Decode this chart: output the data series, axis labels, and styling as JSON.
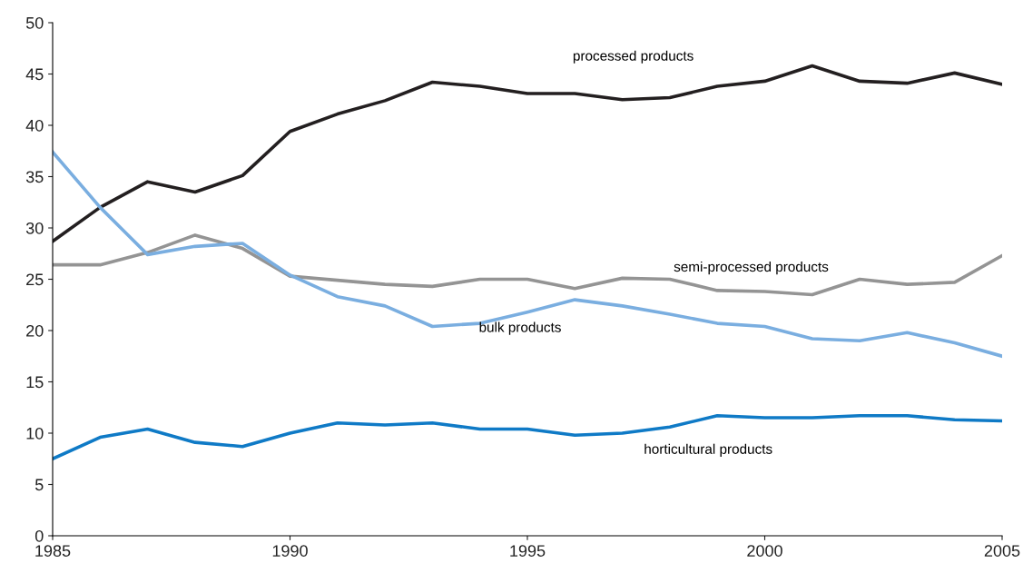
{
  "chart_data": {
    "type": "line",
    "x": [
      1985,
      1986,
      1987,
      1988,
      1989,
      1990,
      1991,
      1992,
      1993,
      1994,
      1995,
      1996,
      1997,
      1998,
      1999,
      2000,
      2001,
      2002,
      2003,
      2004,
      2005
    ],
    "series": [
      {
        "name": "processed products",
        "color": "#231f20",
        "values": [
          28.7,
          32.0,
          34.5,
          33.5,
          35.1,
          39.4,
          41.1,
          42.4,
          44.2,
          43.8,
          43.1,
          43.1,
          42.5,
          42.7,
          43.8,
          44.3,
          45.8,
          44.3,
          44.1,
          45.1,
          44.0
        ]
      },
      {
        "name": "semi-processed products",
        "color": "#949494",
        "values": [
          26.4,
          26.4,
          27.6,
          29.3,
          28.0,
          25.3,
          24.9,
          24.5,
          24.3,
          25.0,
          25.0,
          24.1,
          25.1,
          25.0,
          23.9,
          23.8,
          23.5,
          25.0,
          24.5,
          24.7,
          27.3
        ]
      },
      {
        "name": "bulk products",
        "color": "#7aaee0",
        "values": [
          37.4,
          32.0,
          27.4,
          28.2,
          28.5,
          25.4,
          23.3,
          22.4,
          20.4,
          20.7,
          21.8,
          23.0,
          22.4,
          21.6,
          20.7,
          20.4,
          19.2,
          19.0,
          19.8,
          18.8,
          17.5
        ]
      },
      {
        "name": "horticultural products",
        "color": "#0f7ac6",
        "values": [
          7.5,
          9.6,
          10.4,
          9.1,
          8.7,
          10.0,
          11.0,
          10.8,
          11.0,
          10.4,
          10.4,
          9.8,
          10.0,
          10.6,
          11.7,
          11.5,
          11.5,
          11.7,
          11.7,
          11.3,
          11.2
        ]
      }
    ],
    "xlim": [
      1985,
      2005
    ],
    "xticks": [
      1985,
      1990,
      1995,
      2000,
      2005
    ],
    "ylim": [
      0,
      50
    ],
    "yticks": [
      0,
      5,
      10,
      15,
      20,
      25,
      30,
      35,
      40,
      45,
      50
    ],
    "grid": false,
    "marker": "none",
    "line_style": "solid"
  }
}
